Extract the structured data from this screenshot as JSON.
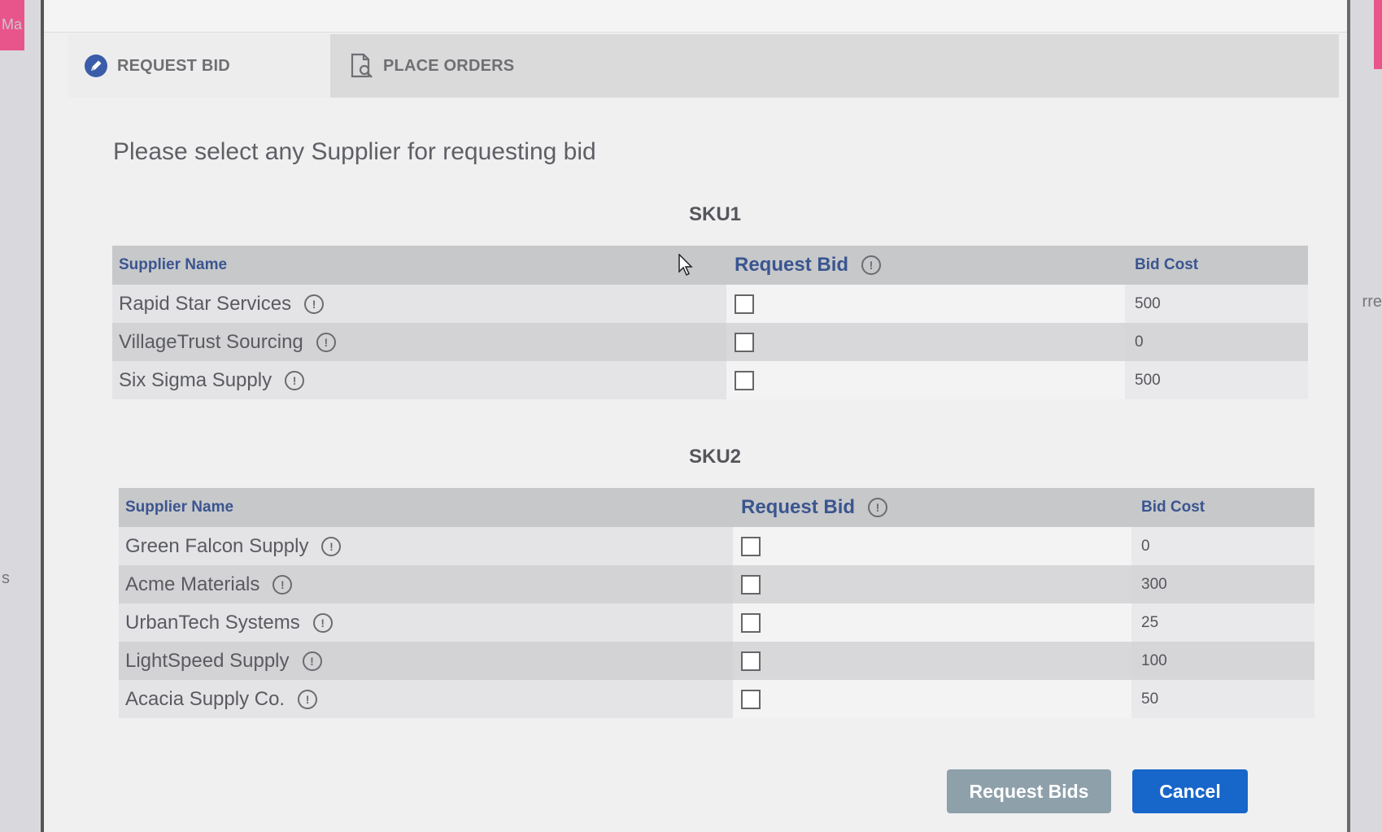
{
  "background": {
    "left_text": "Ma",
    "left_letter": "s",
    "right_text": "rre"
  },
  "tabs": [
    {
      "label": "REQUEST BID",
      "icon": "pencil-icon",
      "active": true
    },
    {
      "label": "PLACE ORDERS",
      "icon": "document-search-icon",
      "active": false
    }
  ],
  "prompt": "Please select any Supplier for requesting bid",
  "sku1": {
    "title": "SKU1",
    "headers": {
      "name": "Supplier Name",
      "request": "Request Bid",
      "cost": "Bid Cost"
    },
    "rows": [
      {
        "name": "Rapid Star Services",
        "cost": "500",
        "checked": false
      },
      {
        "name": "VillageTrust Sourcing",
        "cost": "0",
        "checked": false
      },
      {
        "name": "Six Sigma Supply",
        "cost": "500",
        "checked": false
      }
    ]
  },
  "sku2": {
    "title": "SKU2",
    "headers": {
      "name": "Supplier Name",
      "request": "Request Bid",
      "cost": "Bid Cost"
    },
    "rows": [
      {
        "name": "Green Falcon Supply",
        "cost": "0",
        "checked": false
      },
      {
        "name": "Acme Materials",
        "cost": "300",
        "checked": false
      },
      {
        "name": "UrbanTech Systems",
        "cost": "25",
        "checked": false
      },
      {
        "name": "LightSpeed Supply",
        "cost": "100",
        "checked": false
      },
      {
        "name": "Acacia Supply Co.",
        "cost": "50",
        "checked": false
      }
    ]
  },
  "buttons": {
    "request": "Request Bids",
    "cancel": "Cancel"
  },
  "info_glyph": "!",
  "colors": {
    "accent": "#1766c9",
    "disabled_button": "#8ea0aa",
    "header_text": "#3a5590"
  }
}
